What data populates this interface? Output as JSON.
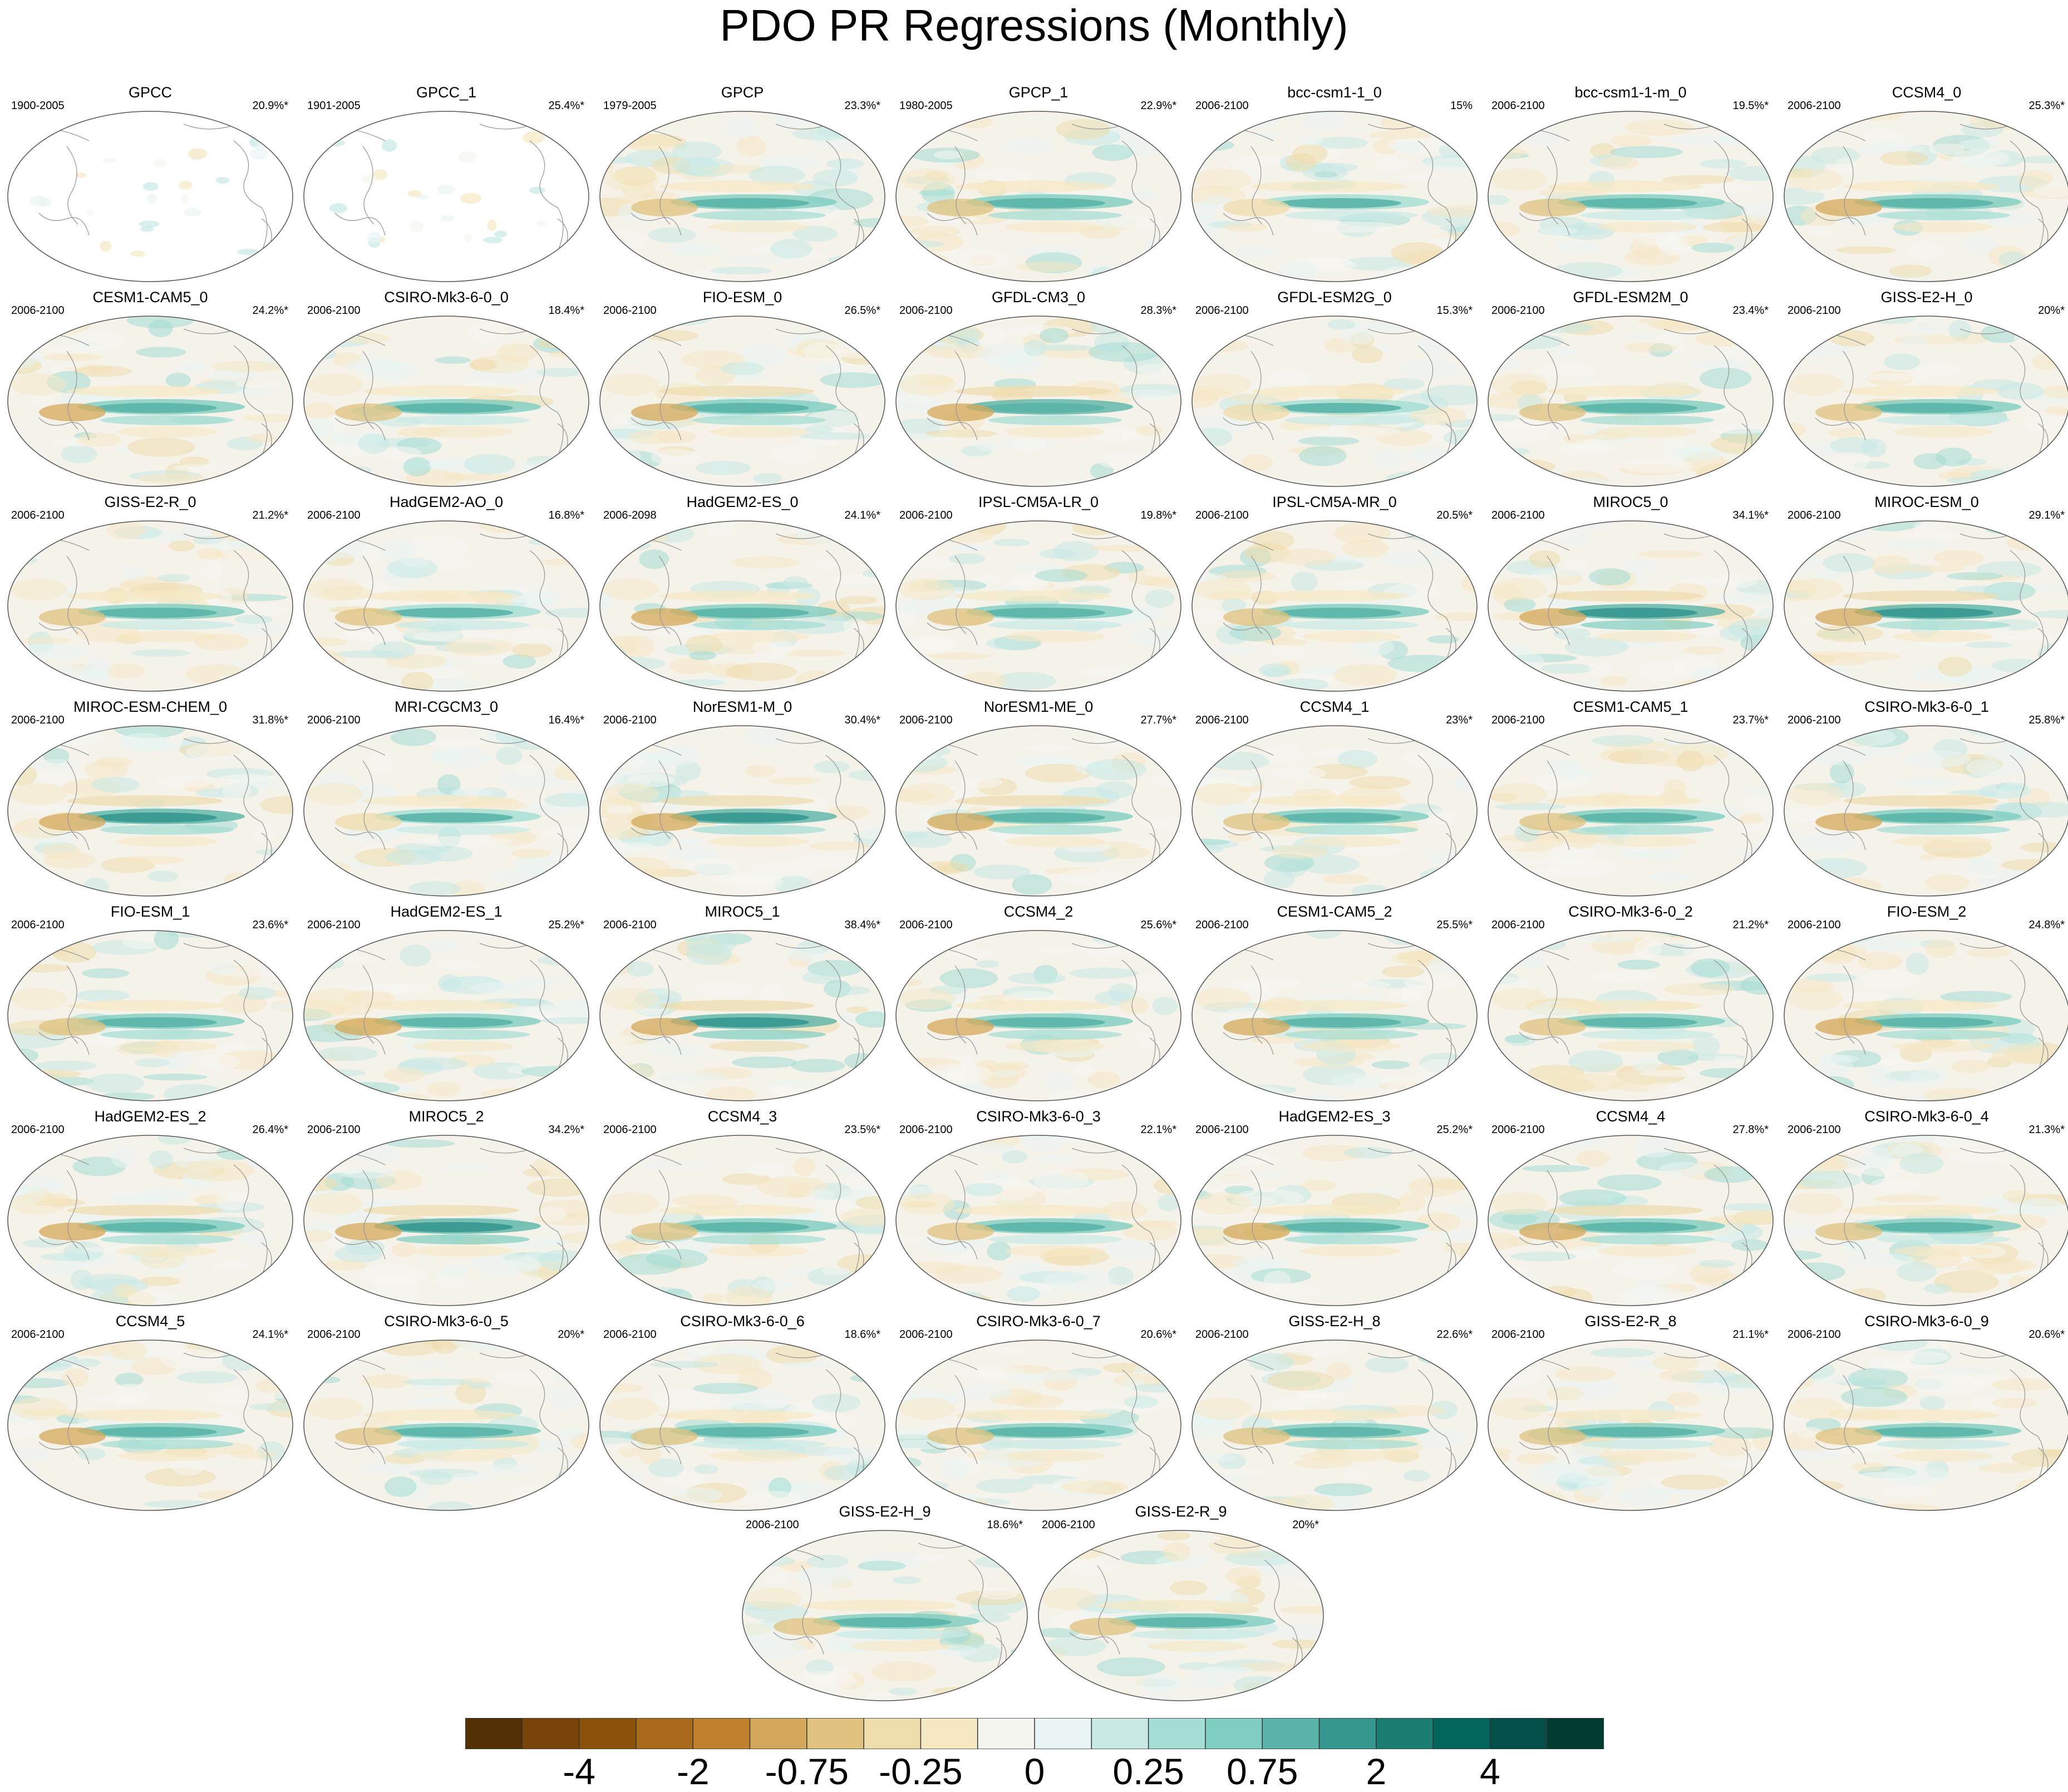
{
  "title": "PDO PR Regressions (Monthly)",
  "chart_data": {
    "type": "heatmap",
    "title": "PDO PR Regressions (Monthly)",
    "projection": "Robinson, Pacific-centred",
    "panels": [
      {
        "name": "GPCC",
        "period": "1900-2005",
        "pct": "20.9%*"
      },
      {
        "name": "GPCC_1",
        "period": "1901-2005",
        "pct": "25.4%*"
      },
      {
        "name": "GPCP",
        "period": "1979-2005",
        "pct": "23.3%*"
      },
      {
        "name": "GPCP_1",
        "period": "1980-2005",
        "pct": "22.9%*"
      },
      {
        "name": "bcc-csm1-1_0",
        "period": "2006-2100",
        "pct": "15%"
      },
      {
        "name": "bcc-csm1-1-m_0",
        "period": "2006-2100",
        "pct": "19.5%*"
      },
      {
        "name": "CCSM4_0",
        "period": "2006-2100",
        "pct": "25.3%*"
      },
      {
        "name": "CESM1-CAM5_0",
        "period": "2006-2100",
        "pct": "24.2%*"
      },
      {
        "name": "CSIRO-Mk3-6-0_0",
        "period": "2006-2100",
        "pct": "18.4%*"
      },
      {
        "name": "FIO-ESM_0",
        "period": "2006-2100",
        "pct": "26.5%*"
      },
      {
        "name": "GFDL-CM3_0",
        "period": "2006-2100",
        "pct": "28.3%*"
      },
      {
        "name": "GFDL-ESM2G_0",
        "period": "2006-2100",
        "pct": "15.3%*"
      },
      {
        "name": "GFDL-ESM2M_0",
        "period": "2006-2100",
        "pct": "23.4%*"
      },
      {
        "name": "GISS-E2-H_0",
        "period": "2006-2100",
        "pct": "20%*"
      },
      {
        "name": "GISS-E2-R_0",
        "period": "2006-2100",
        "pct": "21.2%*"
      },
      {
        "name": "HadGEM2-AO_0",
        "period": "2006-2100",
        "pct": "16.8%*"
      },
      {
        "name": "HadGEM2-ES_0",
        "period": "2006-2098",
        "pct": "24.1%*"
      },
      {
        "name": "IPSL-CM5A-LR_0",
        "period": "2006-2100",
        "pct": "19.8%*"
      },
      {
        "name": "IPSL-CM5A-MR_0",
        "period": "2006-2100",
        "pct": "20.5%*"
      },
      {
        "name": "MIROC5_0",
        "period": "2006-2100",
        "pct": "34.1%*"
      },
      {
        "name": "MIROC-ESM_0",
        "period": "2006-2100",
        "pct": "29.1%*"
      },
      {
        "name": "MIROC-ESM-CHEM_0",
        "period": "2006-2100",
        "pct": "31.8%*"
      },
      {
        "name": "MRI-CGCM3_0",
        "period": "2006-2100",
        "pct": "16.4%*"
      },
      {
        "name": "NorESM1-M_0",
        "period": "2006-2100",
        "pct": "30.4%*"
      },
      {
        "name": "NorESM1-ME_0",
        "period": "2006-2100",
        "pct": "27.7%*"
      },
      {
        "name": "CCSM4_1",
        "period": "2006-2100",
        "pct": "23%*"
      },
      {
        "name": "CESM1-CAM5_1",
        "period": "2006-2100",
        "pct": "23.7%*"
      },
      {
        "name": "CSIRO-Mk3-6-0_1",
        "period": "2006-2100",
        "pct": "25.8%*"
      },
      {
        "name": "FIO-ESM_1",
        "period": "2006-2100",
        "pct": "23.6%*"
      },
      {
        "name": "HadGEM2-ES_1",
        "period": "2006-2100",
        "pct": "25.2%*"
      },
      {
        "name": "MIROC5_1",
        "period": "2006-2100",
        "pct": "38.4%*"
      },
      {
        "name": "CCSM4_2",
        "period": "2006-2100",
        "pct": "25.6%*"
      },
      {
        "name": "CESM1-CAM5_2",
        "period": "2006-2100",
        "pct": "25.5%*"
      },
      {
        "name": "CSIRO-Mk3-6-0_2",
        "period": "2006-2100",
        "pct": "21.2%*"
      },
      {
        "name": "FIO-ESM_2",
        "period": "2006-2100",
        "pct": "24.8%*"
      },
      {
        "name": "HadGEM2-ES_2",
        "period": "2006-2100",
        "pct": "26.4%*"
      },
      {
        "name": "MIROC5_2",
        "period": "2006-2100",
        "pct": "34.2%*"
      },
      {
        "name": "CCSM4_3",
        "period": "2006-2100",
        "pct": "23.5%*"
      },
      {
        "name": "CSIRO-Mk3-6-0_3",
        "period": "2006-2100",
        "pct": "22.1%*"
      },
      {
        "name": "HadGEM2-ES_3",
        "period": "2006-2100",
        "pct": "25.2%*"
      },
      {
        "name": "CCSM4_4",
        "period": "2006-2100",
        "pct": "27.8%*"
      },
      {
        "name": "CSIRO-Mk3-6-0_4",
        "period": "2006-2100",
        "pct": "21.3%*"
      },
      {
        "name": "CCSM4_5",
        "period": "2006-2100",
        "pct": "24.1%*"
      },
      {
        "name": "CSIRO-Mk3-6-0_5",
        "period": "2006-2100",
        "pct": "20%*"
      },
      {
        "name": "CSIRO-Mk3-6-0_6",
        "period": "2006-2100",
        "pct": "18.6%*"
      },
      {
        "name": "CSIRO-Mk3-6-0_7",
        "period": "2006-2100",
        "pct": "20.6%*"
      },
      {
        "name": "GISS-E2-H_8",
        "period": "2006-2100",
        "pct": "22.6%*"
      },
      {
        "name": "GISS-E2-R_8",
        "period": "2006-2100",
        "pct": "21.1%*"
      },
      {
        "name": "CSIRO-Mk3-6-0_9",
        "period": "2006-2100",
        "pct": "20.6%*"
      },
      {
        "name": "GISS-E2-H_9",
        "period": "2006-2100",
        "pct": "18.6%*"
      },
      {
        "name": "GISS-E2-R_9",
        "period": "2006-2100",
        "pct": "20%*"
      }
    ],
    "colorbar": {
      "levels": [
        -5,
        -4,
        -3,
        -2,
        -1,
        -0.75,
        -0.5,
        -0.25,
        0,
        0.25,
        0.5,
        0.75,
        1,
        2,
        3,
        4,
        5
      ],
      "tick_labels": [
        "-4",
        "-2",
        "-0.75",
        "-0.25",
        "0",
        "0.25",
        "0.75",
        "2",
        "4"
      ],
      "tick_values": [
        -4,
        -2,
        -0.75,
        -0.25,
        0,
        0.25,
        0.75,
        2,
        4
      ],
      "colors": [
        "#543005",
        "#7a4409",
        "#8c510a",
        "#a8691a",
        "#bf812d",
        "#d4a85a",
        "#dfc27d",
        "#efdcac",
        "#f6e8c3",
        "#f5f5f0",
        "#e8f4f3",
        "#c7eae5",
        "#a3ddd3",
        "#80cdc1",
        "#5ab4a8",
        "#35978f",
        "#1b7d72",
        "#01665e",
        "#034f47",
        "#003c30"
      ]
    }
  }
}
